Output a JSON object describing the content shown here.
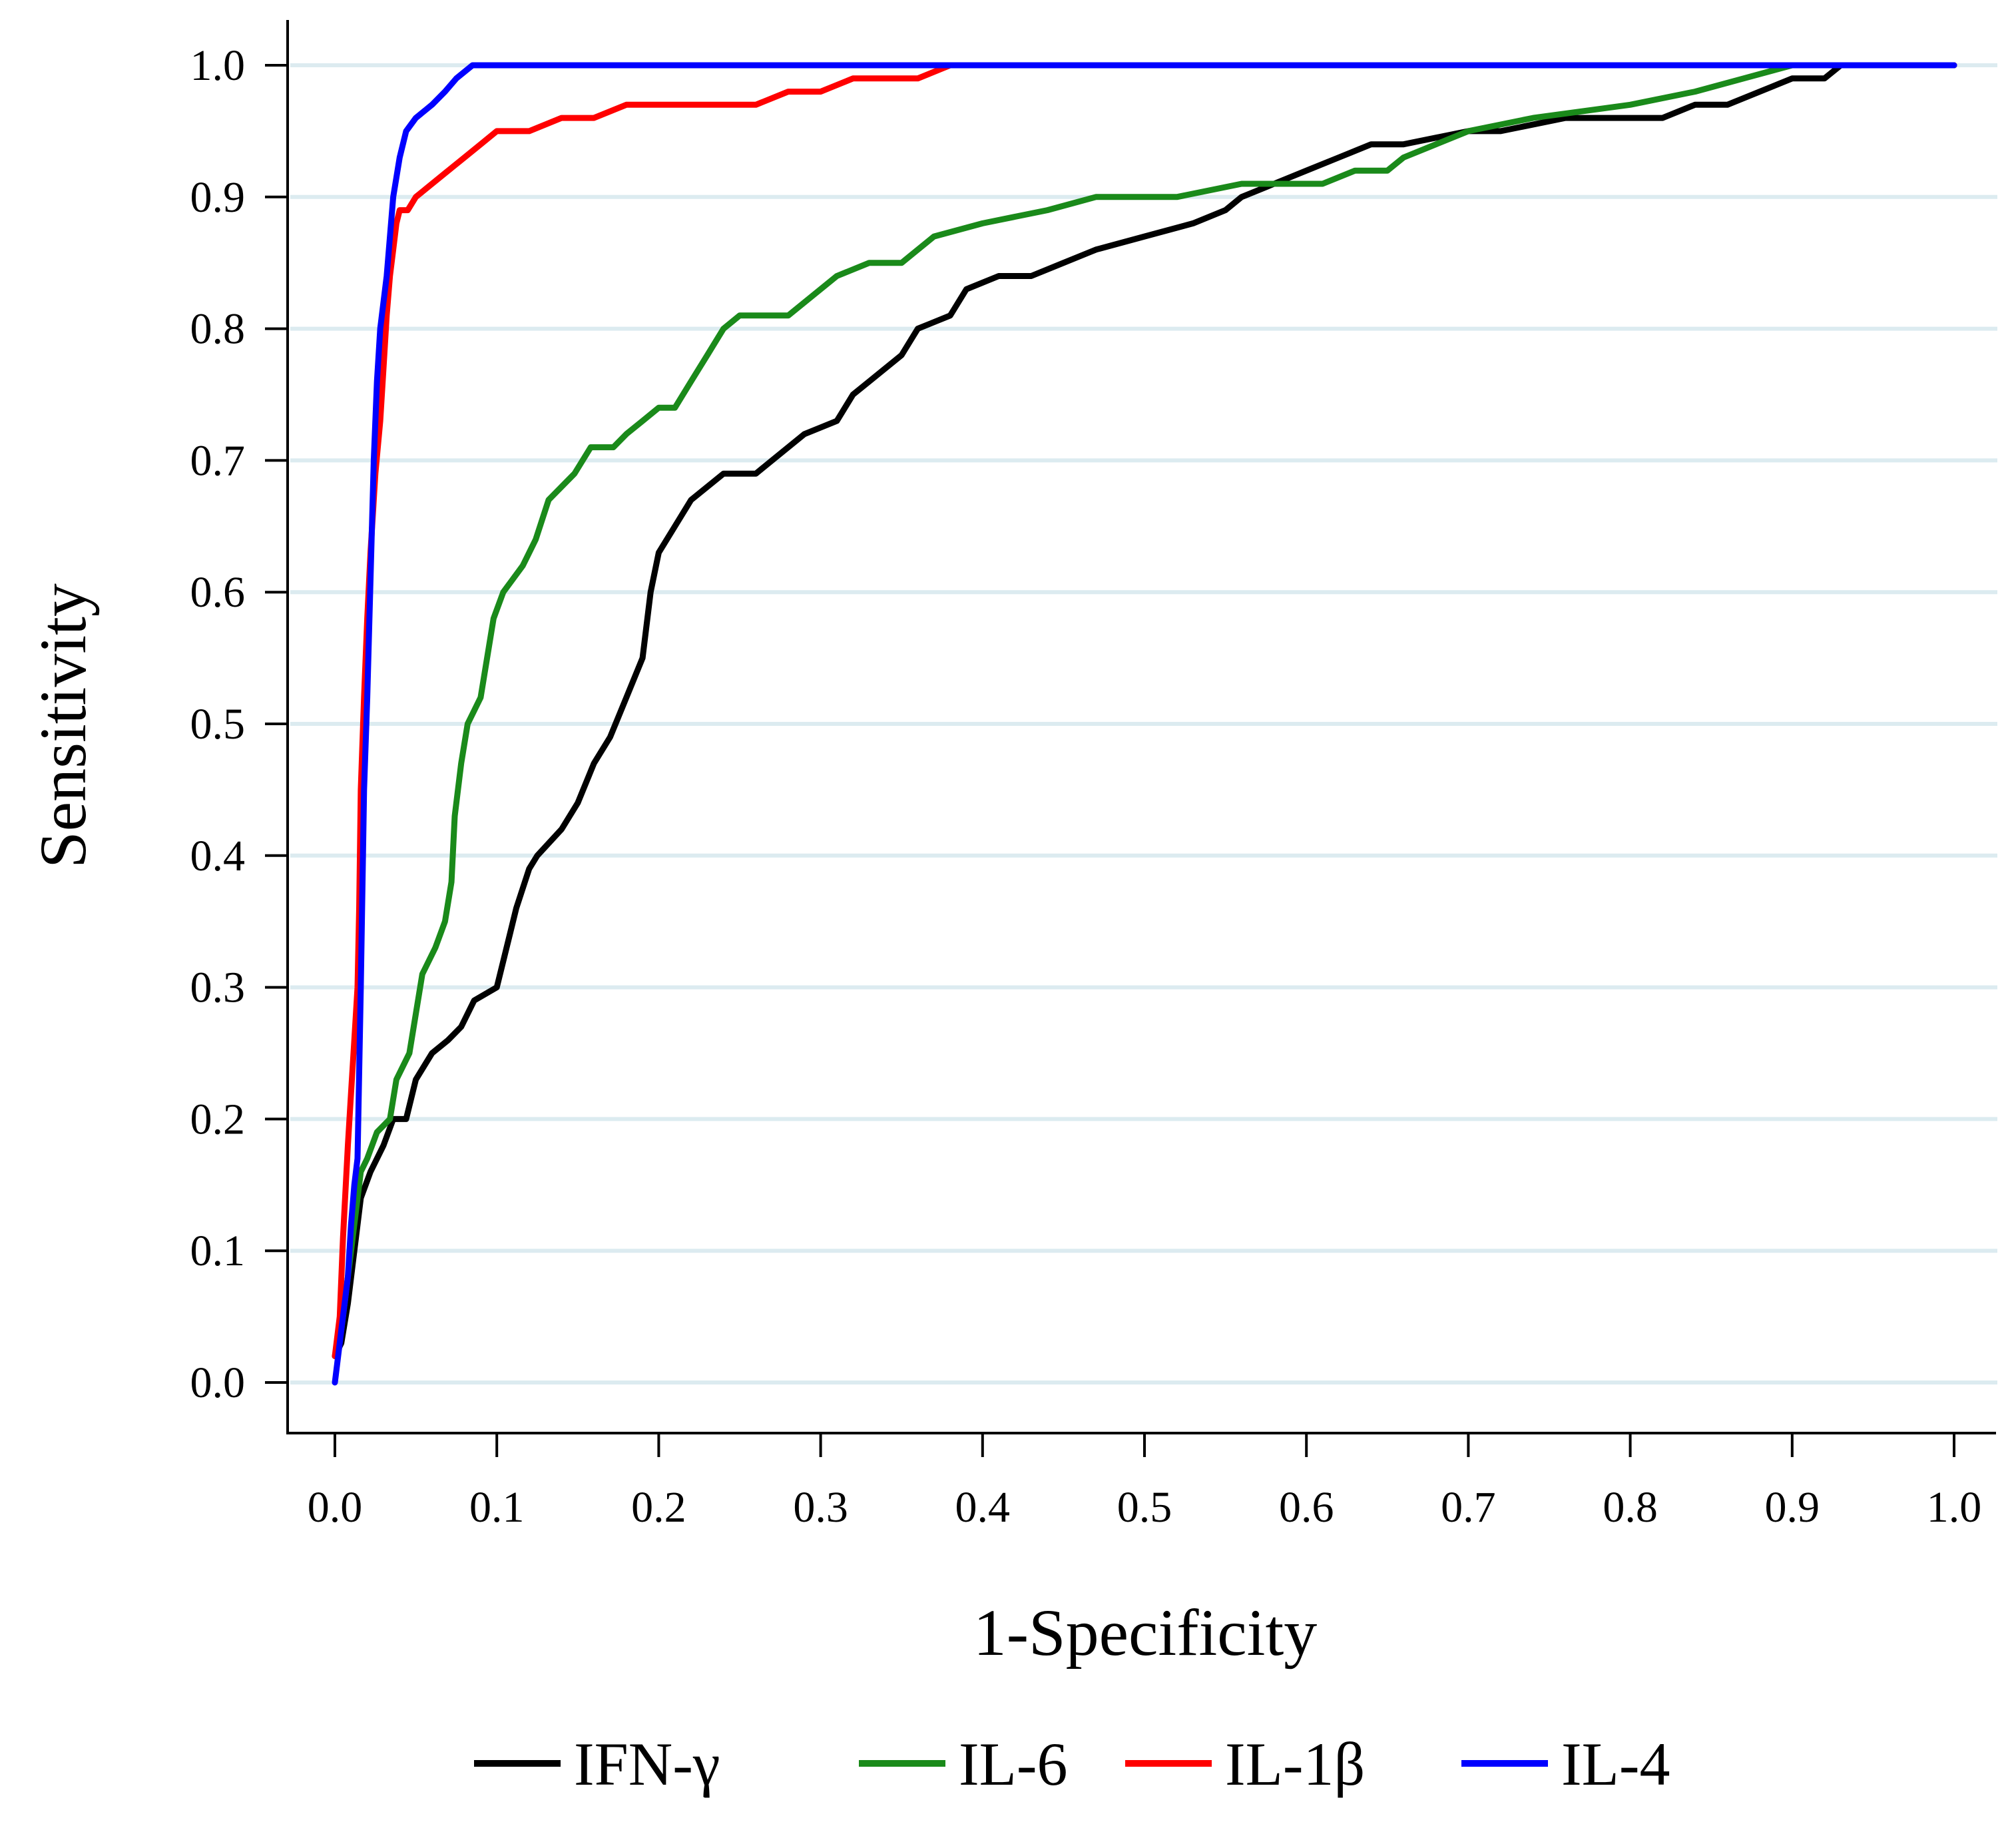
{
  "chart_data": {
    "type": "line",
    "title": "",
    "xlabel": "1-Specificity",
    "ylabel": "Sensitivity",
    "xlim": [
      0.0,
      1.0
    ],
    "ylim": [
      0.0,
      1.0
    ],
    "xticks": [
      "0.0",
      "0.1",
      "0.2",
      "0.3",
      "0.4",
      "0.5",
      "0.6",
      "0.7",
      "0.8",
      "0.9",
      "1.0"
    ],
    "yticks": [
      "0.0",
      "0.1",
      "0.2",
      "0.3",
      "0.4",
      "0.5",
      "0.6",
      "0.7",
      "0.8",
      "0.9",
      "1.0"
    ],
    "grid": "horizontal",
    "legend_position": "bottom",
    "series": [
      {
        "name": "IFN-γ",
        "color": "#000000",
        "points": [
          [
            0,
            0.02
          ],
          [
            0.004,
            0.03
          ],
          [
            0.008,
            0.06
          ],
          [
            0.012,
            0.1
          ],
          [
            0.016,
            0.14
          ],
          [
            0.022,
            0.16
          ],
          [
            0.03,
            0.18
          ],
          [
            0.036,
            0.2
          ],
          [
            0.044,
            0.2
          ],
          [
            0.05,
            0.23
          ],
          [
            0.06,
            0.25
          ],
          [
            0.07,
            0.26
          ],
          [
            0.078,
            0.27
          ],
          [
            0.086,
            0.29
          ],
          [
            0.1,
            0.3
          ],
          [
            0.108,
            0.34
          ],
          [
            0.112,
            0.36
          ],
          [
            0.12,
            0.39
          ],
          [
            0.125,
            0.4
          ],
          [
            0.14,
            0.42
          ],
          [
            0.15,
            0.44
          ],
          [
            0.16,
            0.47
          ],
          [
            0.17,
            0.49
          ],
          [
            0.18,
            0.52
          ],
          [
            0.19,
            0.55
          ],
          [
            0.195,
            0.6
          ],
          [
            0.2,
            0.63
          ],
          [
            0.21,
            0.65
          ],
          [
            0.22,
            0.67
          ],
          [
            0.24,
            0.69
          ],
          [
            0.26,
            0.69
          ],
          [
            0.27,
            0.7
          ],
          [
            0.29,
            0.72
          ],
          [
            0.31,
            0.73
          ],
          [
            0.32,
            0.75
          ],
          [
            0.33,
            0.76
          ],
          [
            0.35,
            0.78
          ],
          [
            0.36,
            0.8
          ],
          [
            0.38,
            0.81
          ],
          [
            0.39,
            0.83
          ],
          [
            0.41,
            0.84
          ],
          [
            0.43,
            0.84
          ],
          [
            0.45,
            0.85
          ],
          [
            0.47,
            0.86
          ],
          [
            0.5,
            0.87
          ],
          [
            0.53,
            0.88
          ],
          [
            0.55,
            0.89
          ],
          [
            0.56,
            0.9
          ],
          [
            0.58,
            0.91
          ],
          [
            0.6,
            0.92
          ],
          [
            0.62,
            0.93
          ],
          [
            0.64,
            0.94
          ],
          [
            0.66,
            0.94
          ],
          [
            0.7,
            0.95
          ],
          [
            0.72,
            0.95
          ],
          [
            0.76,
            0.96
          ],
          [
            0.8,
            0.96
          ],
          [
            0.82,
            0.96
          ],
          [
            0.84,
            0.97
          ],
          [
            0.86,
            0.97
          ],
          [
            0.88,
            0.98
          ],
          [
            0.9,
            0.99
          ],
          [
            0.92,
            0.99
          ],
          [
            0.93,
            1.0
          ],
          [
            1.0,
            1.0
          ]
        ]
      },
      {
        "name": "IL-6",
        "color": "#1a8a1a",
        "points": [
          [
            0,
            0.02
          ],
          [
            0.004,
            0.04
          ],
          [
            0.008,
            0.08
          ],
          [
            0.012,
            0.12
          ],
          [
            0.016,
            0.16
          ],
          [
            0.02,
            0.17
          ],
          [
            0.026,
            0.19
          ],
          [
            0.034,
            0.2
          ],
          [
            0.038,
            0.23
          ],
          [
            0.046,
            0.25
          ],
          [
            0.05,
            0.28
          ],
          [
            0.054,
            0.31
          ],
          [
            0.062,
            0.33
          ],
          [
            0.068,
            0.35
          ],
          [
            0.072,
            0.38
          ],
          [
            0.074,
            0.43
          ],
          [
            0.078,
            0.47
          ],
          [
            0.082,
            0.5
          ],
          [
            0.09,
            0.52
          ],
          [
            0.094,
            0.55
          ],
          [
            0.098,
            0.58
          ],
          [
            0.104,
            0.6
          ],
          [
            0.116,
            0.62
          ],
          [
            0.124,
            0.64
          ],
          [
            0.132,
            0.67
          ],
          [
            0.148,
            0.69
          ],
          [
            0.158,
            0.71
          ],
          [
            0.172,
            0.71
          ],
          [
            0.18,
            0.72
          ],
          [
            0.19,
            0.73
          ],
          [
            0.2,
            0.74
          ],
          [
            0.21,
            0.74
          ],
          [
            0.22,
            0.76
          ],
          [
            0.23,
            0.78
          ],
          [
            0.24,
            0.8
          ],
          [
            0.25,
            0.81
          ],
          [
            0.28,
            0.81
          ],
          [
            0.3,
            0.83
          ],
          [
            0.31,
            0.84
          ],
          [
            0.33,
            0.85
          ],
          [
            0.35,
            0.85
          ],
          [
            0.37,
            0.87
          ],
          [
            0.4,
            0.88
          ],
          [
            0.44,
            0.89
          ],
          [
            0.47,
            0.9
          ],
          [
            0.52,
            0.9
          ],
          [
            0.56,
            0.91
          ],
          [
            0.61,
            0.91
          ],
          [
            0.63,
            0.92
          ],
          [
            0.65,
            0.92
          ],
          [
            0.66,
            0.93
          ],
          [
            0.68,
            0.94
          ],
          [
            0.7,
            0.95
          ],
          [
            0.74,
            0.96
          ],
          [
            0.8,
            0.97
          ],
          [
            0.84,
            0.98
          ],
          [
            0.87,
            0.99
          ],
          [
            0.9,
            1.0
          ],
          [
            1.0,
            1.0
          ]
        ]
      },
      {
        "name": "IL-1β",
        "color": "#ff0000",
        "points": [
          [
            0,
            0.02
          ],
          [
            0.003,
            0.05
          ],
          [
            0.005,
            0.11
          ],
          [
            0.008,
            0.18
          ],
          [
            0.01,
            0.22
          ],
          [
            0.012,
            0.26
          ],
          [
            0.014,
            0.3
          ],
          [
            0.015,
            0.36
          ],
          [
            0.016,
            0.45
          ],
          [
            0.018,
            0.52
          ],
          [
            0.02,
            0.58
          ],
          [
            0.022,
            0.63
          ],
          [
            0.025,
            0.69
          ],
          [
            0.028,
            0.73
          ],
          [
            0.03,
            0.77
          ],
          [
            0.032,
            0.81
          ],
          [
            0.034,
            0.84
          ],
          [
            0.036,
            0.86
          ],
          [
            0.038,
            0.88
          ],
          [
            0.04,
            0.89
          ],
          [
            0.045,
            0.89
          ],
          [
            0.05,
            0.9
          ],
          [
            0.06,
            0.91
          ],
          [
            0.07,
            0.92
          ],
          [
            0.08,
            0.93
          ],
          [
            0.09,
            0.94
          ],
          [
            0.1,
            0.95
          ],
          [
            0.12,
            0.95
          ],
          [
            0.14,
            0.96
          ],
          [
            0.16,
            0.96
          ],
          [
            0.18,
            0.97
          ],
          [
            0.22,
            0.97
          ],
          [
            0.26,
            0.97
          ],
          [
            0.28,
            0.98
          ],
          [
            0.3,
            0.98
          ],
          [
            0.32,
            0.99
          ],
          [
            0.36,
            0.99
          ],
          [
            0.38,
            1.0
          ],
          [
            0.4,
            1.0
          ],
          [
            1.0,
            1.0
          ]
        ]
      },
      {
        "name": "IL-4",
        "color": "#0000ff",
        "points": [
          [
            0,
            0.0
          ],
          [
            0.004,
            0.04
          ],
          [
            0.008,
            0.08
          ],
          [
            0.01,
            0.12
          ],
          [
            0.012,
            0.15
          ],
          [
            0.014,
            0.17
          ],
          [
            0.016,
            0.3
          ],
          [
            0.018,
            0.45
          ],
          [
            0.02,
            0.52
          ],
          [
            0.022,
            0.61
          ],
          [
            0.024,
            0.7
          ],
          [
            0.026,
            0.76
          ],
          [
            0.028,
            0.8
          ],
          [
            0.032,
            0.84
          ],
          [
            0.034,
            0.87
          ],
          [
            0.036,
            0.9
          ],
          [
            0.04,
            0.93
          ],
          [
            0.044,
            0.95
          ],
          [
            0.05,
            0.96
          ],
          [
            0.06,
            0.97
          ],
          [
            0.068,
            0.98
          ],
          [
            0.075,
            0.99
          ],
          [
            0.085,
            1.0
          ],
          [
            0.1,
            1.0
          ],
          [
            1.0,
            1.0
          ]
        ]
      }
    ]
  }
}
